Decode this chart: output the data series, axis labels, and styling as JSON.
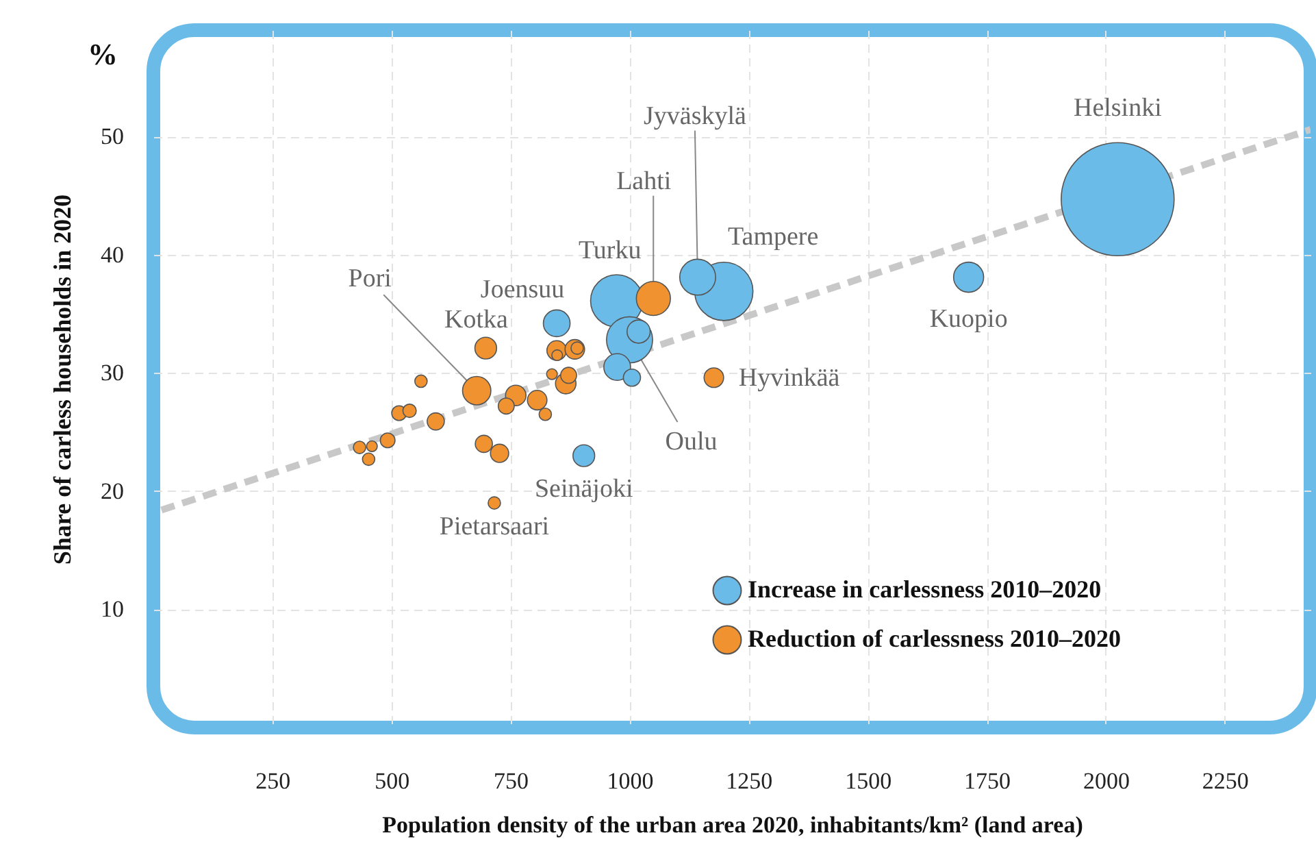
{
  "chart_data": {
    "type": "bubble",
    "xlabel": "Population density of the urban area 2020, inhabitants/km² (land area)",
    "ylabel": "Share of carless households in  2020",
    "xlim": [
      0,
      2430
    ],
    "ylim": [
      0,
      59
    ],
    "xticks": [
      250,
      500,
      750,
      1000,
      1250,
      1500,
      1750,
      2000,
      2250
    ],
    "yticks": [
      10,
      20,
      30,
      40,
      50
    ],
    "grid": true,
    "legend": "bottom right",
    "marker": "circle",
    "series": [
      {
        "name": "Increase in carlessness 2010–2020",
        "color": "#6bbbe8",
        "x": [
          847,
          973,
          1000,
          1019,
          974,
          1005,
          904,
          1143,
          1198,
          1712,
          2025
        ],
        "values": [
          34.2,
          36.1,
          32.8,
          33.5,
          30.5,
          29.6,
          23.0,
          38.1,
          36.9,
          38.1,
          44.7
        ],
        "sizes": [
          0.056,
          0.214,
          0.167,
          0.042,
          0.056,
          0.023,
          0.037,
          0.101,
          0.266,
          0.071,
          1
        ]
      },
      {
        "name": "Reduction of carlessness 2010–2020",
        "color": "#f0922f",
        "x": [
          698,
          679,
          562,
          516,
          538,
          593,
          492,
          433,
          459,
          452,
          694,
          727,
          716,
          761,
          741,
          806,
          823,
          837,
          866,
          872,
          847,
          848,
          885,
          890,
          1050,
          1177
        ],
        "values": [
          32.1,
          28.5,
          29.3,
          26.6,
          26.8,
          25.9,
          24.3,
          23.7,
          23.8,
          22.7,
          24.0,
          23.2,
          19.0,
          28.1,
          27.2,
          27.7,
          26.5,
          29.9,
          29.1,
          29.8,
          31.9,
          31.5,
          32.0,
          32.1,
          36.3,
          29.6
        ],
        "sizes": [
          0.037,
          0.063,
          0.012,
          0.017,
          0.014,
          0.023,
          0.017,
          0.012,
          0.009,
          0.012,
          0.023,
          0.026,
          0.012,
          0.033,
          0.02,
          0.03,
          0.012,
          0.009,
          0.033,
          0.02,
          0.03,
          0.009,
          0.03,
          0.012,
          0.091,
          0.03
        ]
      },
      {
        "type": "line",
        "color": "#c8c8c8",
        "line_style": "dashed",
        "marker": "none",
        "x": [
          17,
          2430
        ],
        "values": [
          18.4,
          50.6
        ]
      }
    ],
    "annotations": [
      {
        "text": "Helsinki",
        "x": 2025,
        "y": 44.7
      },
      {
        "text": "Jyväskylä",
        "x": 1143,
        "y": 38.1
      },
      {
        "text": "Lahti",
        "x": 1050,
        "y": 36.3
      },
      {
        "text": "Tampere",
        "x": 1198,
        "y": 36.9
      },
      {
        "text": "Turku",
        "x": 973,
        "y": 36.1
      },
      {
        "text": "Joensuu",
        "x": 847,
        "y": 34.2
      },
      {
        "text": "Kotka",
        "x": 698,
        "y": 32.1
      },
      {
        "text": "Pori",
        "x": 679,
        "y": 28.5
      },
      {
        "text": "Kuopio",
        "x": 1712,
        "y": 38.1
      },
      {
        "text": "Hyvinkää",
        "x": 1177,
        "y": 29.6
      },
      {
        "text": "Oulu",
        "x": 1000,
        "y": 32.8
      },
      {
        "text": "Seinäjoki",
        "x": 904,
        "y": 23.0
      },
      {
        "text": "Pietarsaari",
        "x": 716,
        "y": 19.0
      },
      "%"
    ]
  }
}
